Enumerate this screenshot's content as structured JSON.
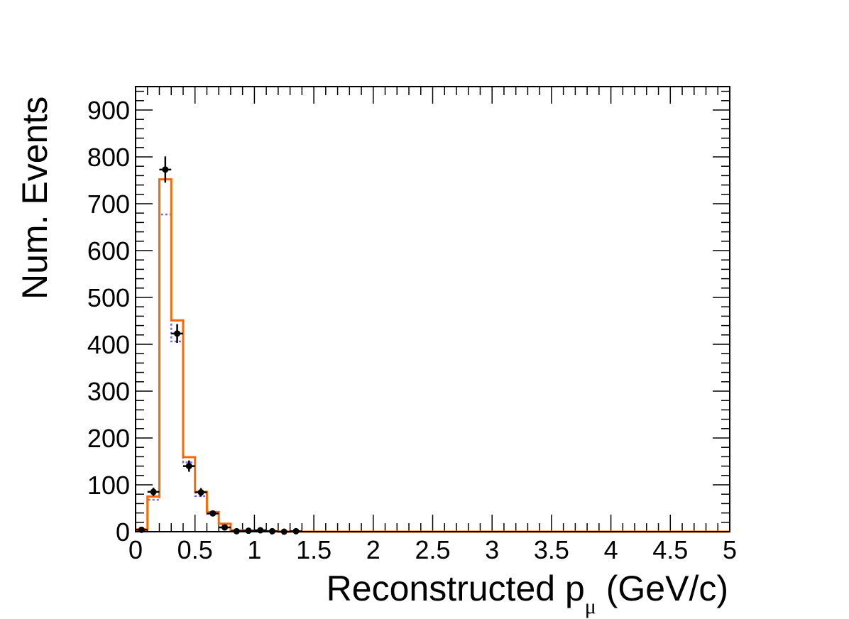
{
  "chart_data": {
    "type": "histogram",
    "xlabel": "Reconstructed p",
    "xlabel_subscript": "μ",
    "xlabel_unit": " (GeV/c)",
    "ylabel": "Num. Events",
    "xlim": [
      0,
      5
    ],
    "ylim": [
      0,
      950
    ],
    "x_ticks": [
      "0",
      "0.5",
      "1",
      "1.5",
      "2",
      "2.5",
      "3",
      "3.5",
      "4",
      "4.5",
      "5"
    ],
    "y_ticks": [
      "0",
      "100",
      "200",
      "300",
      "400",
      "500",
      "600",
      "700",
      "800",
      "900"
    ],
    "bin_width": 0.1,
    "colors": {
      "data_points": "#000000",
      "solid_histogram": "#ff6600",
      "dotted_histogram": "#7b68ee"
    },
    "series": [
      {
        "style": "solid orange histogram",
        "bins_x": [
          0.0,
          0.1,
          0.2,
          0.3,
          0.4,
          0.5,
          0.6,
          0.7,
          0.8,
          0.9,
          1.0,
          1.1,
          1.2,
          1.3,
          1.4
        ],
        "values": [
          5,
          75,
          752,
          451,
          159,
          85,
          42,
          17,
          3,
          2,
          1,
          1,
          0,
          0,
          0
        ]
      },
      {
        "style": "dotted blue histogram",
        "bins_x": [
          0.0,
          0.1,
          0.2,
          0.3,
          0.4,
          0.5,
          0.6,
          0.7,
          0.8,
          0.9,
          1.0,
          1.1,
          1.2,
          1.3,
          1.4
        ],
        "values": [
          4,
          68,
          677,
          406,
          148,
          76,
          38,
          15,
          3,
          2,
          1,
          1,
          0,
          0,
          0
        ]
      },
      {
        "style": "data points with error bars",
        "x": [
          0.05,
          0.15,
          0.25,
          0.35,
          0.45,
          0.55,
          0.65,
          0.75,
          0.85,
          0.95,
          1.05,
          1.15,
          1.25,
          1.35
        ],
        "values": [
          4,
          85,
          773,
          423,
          140,
          84,
          39,
          9,
          1,
          2,
          3,
          1,
          0,
          1
        ],
        "errors": [
          2,
          9,
          28,
          20,
          12,
          9,
          6,
          3,
          1,
          1.5,
          2,
          1,
          0.5,
          1
        ]
      }
    ]
  }
}
